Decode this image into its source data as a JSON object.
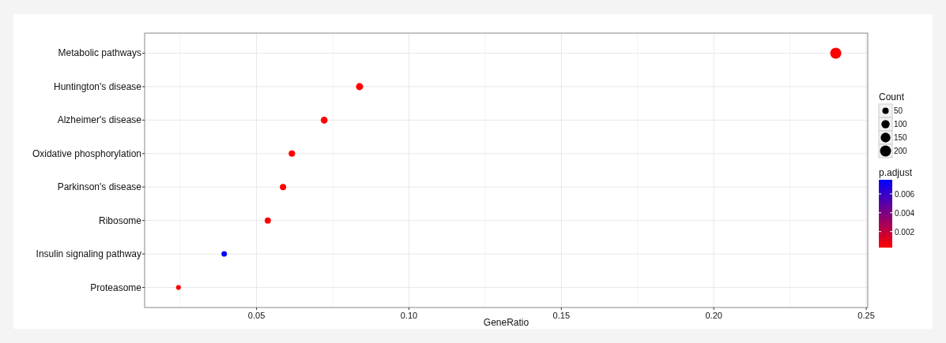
{
  "chart_data": {
    "type": "scatter",
    "orientation": "horizontal",
    "xlabel": "GeneRatio",
    "categories": [
      "Metabolic pathways",
      "Huntington's disease",
      "Alzheimer's disease",
      "Oxidative phosphorylation",
      "Parkinson's disease",
      "Ribosome",
      "Insulin signaling pathway",
      "Proteasome"
    ],
    "values": [
      0.24,
      0.0838,
      0.0722,
      0.0616,
      0.0587,
      0.0537,
      0.0394,
      0.0244
    ],
    "sizes": [
      204,
      71,
      61,
      52,
      50,
      46,
      33,
      21
    ],
    "size_legend": [
      50,
      100,
      150,
      200
    ],
    "legend_title": "Count",
    "cvalues": [
      0.0003,
      0.0003,
      0.0003,
      0.0003,
      0.0003,
      0.0003,
      0.0075,
      0.0003
    ],
    "clim": [
      0.0003,
      0.0075
    ],
    "cticks": [
      0.002,
      0.004,
      0.006
    ],
    "clabel": "p.adjust",
    "xlim": [
      0.0133,
      0.2505
    ],
    "xticks": [
      0.05,
      {
        "value": 0.1,
        "label": "0.10"
      },
      0.15,
      {
        "value": 0.2,
        "label": "0.20"
      },
      0.25
    ],
    "grid": true,
    "marker": "circle"
  }
}
